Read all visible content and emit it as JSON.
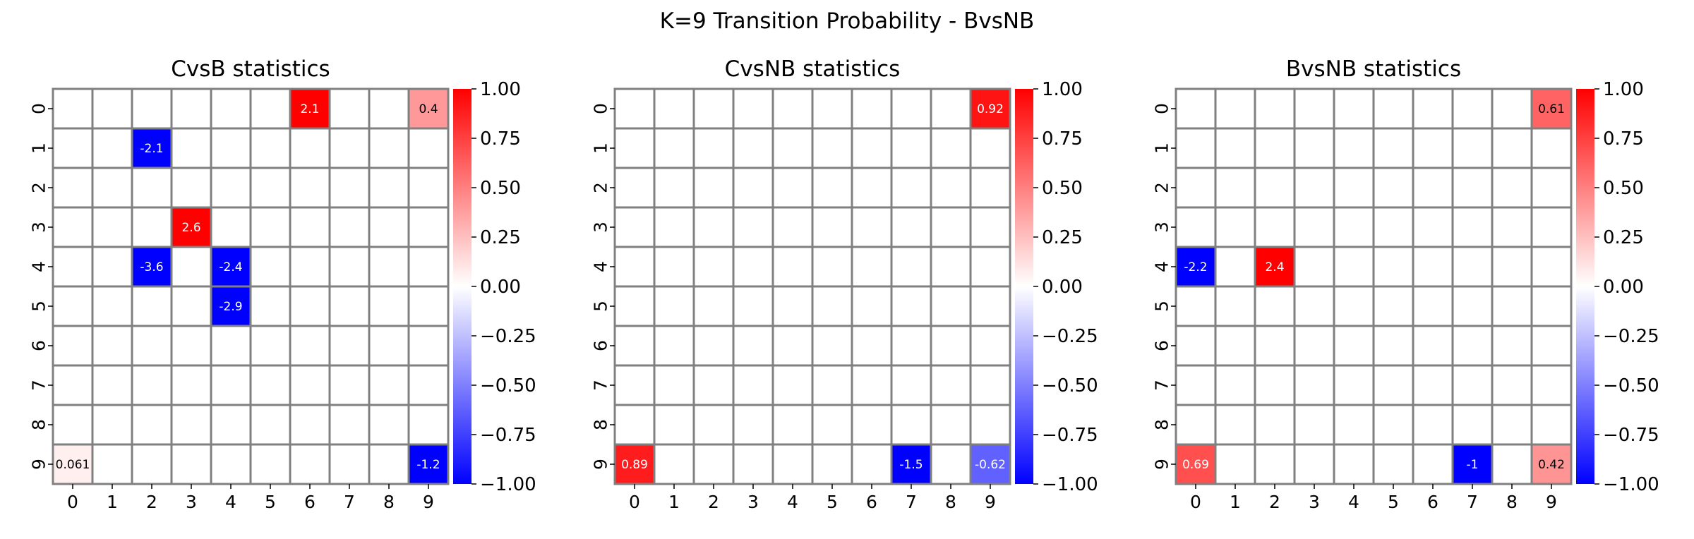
{
  "suptitle": "K=9 Transition Probability - BvsNB",
  "colormap": {
    "low": "#0000ff",
    "mid": "#ffffff",
    "high": "#ff0000"
  },
  "grid_color": "#808080",
  "chart_data": [
    {
      "type": "heatmap",
      "title": "CvsB statistics",
      "x_tick_labels": [
        "0",
        "1",
        "2",
        "3",
        "4",
        "5",
        "6",
        "7",
        "8",
        "9"
      ],
      "y_tick_labels": [
        "0",
        "1",
        "2",
        "3",
        "4",
        "5",
        "6",
        "7",
        "8",
        "9"
      ],
      "color_range": [
        -1,
        1
      ],
      "colorbar_ticks": [
        "1.00",
        "0.75",
        "0.50",
        "0.25",
        "0.00",
        "−0.25",
        "−0.50",
        "−0.75",
        "−1.00"
      ],
      "cells": [
        {
          "row": 0,
          "col": 6,
          "value": 2.1,
          "label": "2.1"
        },
        {
          "row": 0,
          "col": 9,
          "value": 0.4,
          "label": "0.4"
        },
        {
          "row": 1,
          "col": 2,
          "value": -2.1,
          "label": "-2.1"
        },
        {
          "row": 3,
          "col": 3,
          "value": 2.6,
          "label": "2.6"
        },
        {
          "row": 4,
          "col": 2,
          "value": -3.6,
          "label": "-3.6"
        },
        {
          "row": 4,
          "col": 4,
          "value": -2.4,
          "label": "-2.4"
        },
        {
          "row": 5,
          "col": 4,
          "value": -2.9,
          "label": "-2.9"
        },
        {
          "row": 9,
          "col": 0,
          "value": 0.061,
          "label": "0.061"
        },
        {
          "row": 9,
          "col": 9,
          "value": -1.2,
          "label": "-1.2"
        }
      ]
    },
    {
      "type": "heatmap",
      "title": "CvsNB statistics",
      "x_tick_labels": [
        "0",
        "1",
        "2",
        "3",
        "4",
        "5",
        "6",
        "7",
        "8",
        "9"
      ],
      "y_tick_labels": [
        "0",
        "1",
        "2",
        "3",
        "4",
        "5",
        "6",
        "7",
        "8",
        "9"
      ],
      "color_range": [
        -1,
        1
      ],
      "colorbar_ticks": [
        "1.00",
        "0.75",
        "0.50",
        "0.25",
        "0.00",
        "−0.25",
        "−0.50",
        "−0.75",
        "−1.00"
      ],
      "cells": [
        {
          "row": 0,
          "col": 9,
          "value": 0.92,
          "label": "0.92"
        },
        {
          "row": 9,
          "col": 0,
          "value": 0.89,
          "label": "0.89"
        },
        {
          "row": 9,
          "col": 7,
          "value": -1.5,
          "label": "-1.5"
        },
        {
          "row": 9,
          "col": 9,
          "value": -0.62,
          "label": "-0.62"
        }
      ]
    },
    {
      "type": "heatmap",
      "title": "BvsNB statistics",
      "x_tick_labels": [
        "0",
        "1",
        "2",
        "3",
        "4",
        "5",
        "6",
        "7",
        "8",
        "9"
      ],
      "y_tick_labels": [
        "0",
        "1",
        "2",
        "3",
        "4",
        "5",
        "6",
        "7",
        "8",
        "9"
      ],
      "color_range": [
        -1,
        1
      ],
      "colorbar_ticks": [
        "1.00",
        "0.75",
        "0.50",
        "0.25",
        "0.00",
        "−0.25",
        "−0.50",
        "−0.75",
        "−1.00"
      ],
      "cells": [
        {
          "row": 0,
          "col": 9,
          "value": 0.61,
          "label": "0.61"
        },
        {
          "row": 4,
          "col": 0,
          "value": -2.2,
          "label": "-2.2"
        },
        {
          "row": 4,
          "col": 2,
          "value": 2.4,
          "label": "2.4"
        },
        {
          "row": 9,
          "col": 0,
          "value": 0.69,
          "label": "0.69"
        },
        {
          "row": 9,
          "col": 7,
          "value": -1,
          "label": "-1"
        },
        {
          "row": 9,
          "col": 9,
          "value": 0.42,
          "label": "0.42"
        }
      ]
    }
  ]
}
